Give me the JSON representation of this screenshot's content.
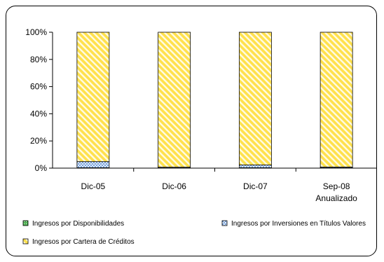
{
  "chart_data": {
    "type": "bar",
    "stacked": true,
    "percent": true,
    "categories": [
      "Dic-05",
      "Dic-06",
      "Dic-07",
      "Sep-08\nAnualizado"
    ],
    "series": [
      {
        "name": "Ingresos por Disponibilidades",
        "values": [
          0.3,
          0.2,
          0.3,
          0.2
        ],
        "color": "#4caf50"
      },
      {
        "name": "Ingresos por Inversiones en Títulos Valores",
        "values": [
          4.5,
          0.5,
          2.0,
          0.6
        ],
        "color": "#5b8fd6"
      },
      {
        "name": "Ingresos por Cartera de Créditos",
        "values": [
          95.2,
          99.3,
          97.7,
          99.2
        ],
        "color": "#ffe14d"
      }
    ],
    "yticks": [
      "0%",
      "20%",
      "40%",
      "60%",
      "80%",
      "100%"
    ],
    "ylim": [
      0,
      100
    ],
    "legend_position": "bottom",
    "grid": false
  }
}
